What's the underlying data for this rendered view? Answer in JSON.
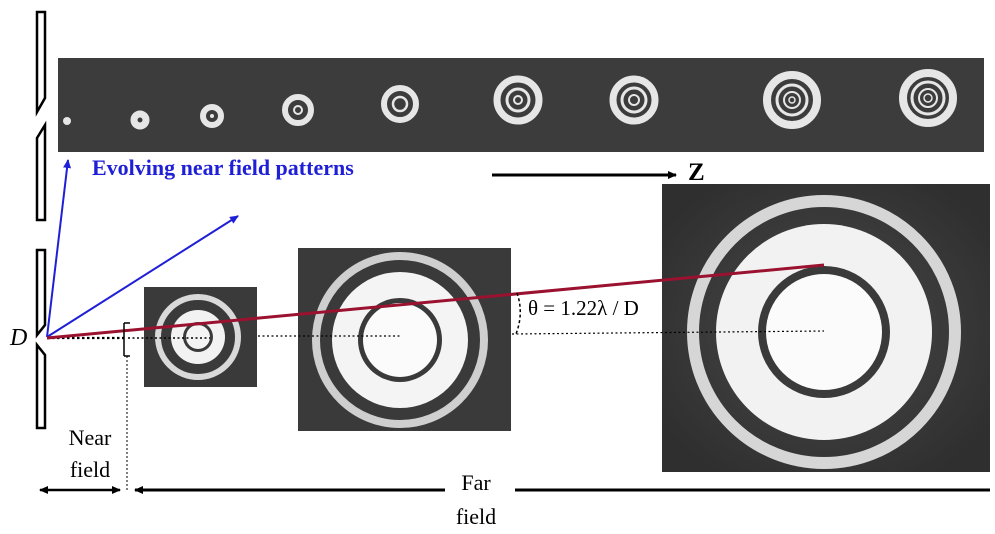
{
  "caption": "Evolving near field patterns",
  "axis_label": "Z",
  "aperture_label": "D",
  "angle_formula": "θ = 1.22λ / D",
  "near_field": {
    "line1": "Near",
    "line2": "field"
  },
  "far_field": {
    "line1": "Far",
    "line2": "field"
  },
  "colors": {
    "caption": "#1f1fd6",
    "projection_arrows": "#1f1fd6",
    "angle_ray": "#9a1230",
    "film_background": "#3b3b3b",
    "ring_light": "#e8e8e8"
  }
}
